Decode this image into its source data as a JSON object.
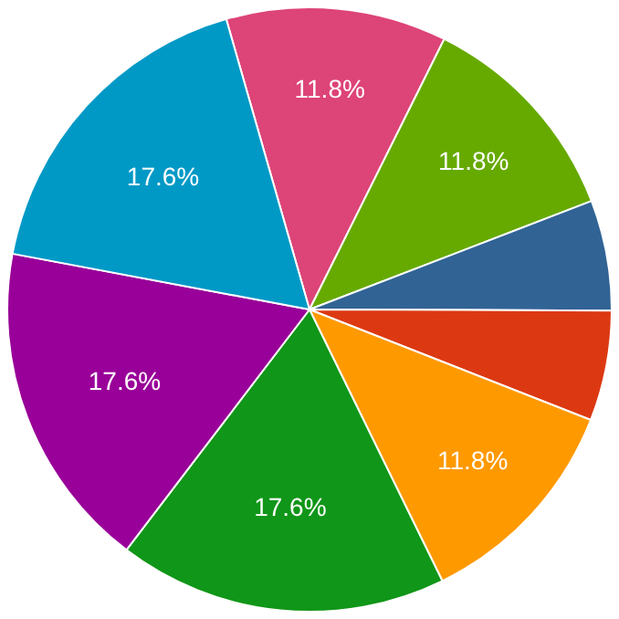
{
  "chart_data": {
    "type": "pie",
    "categories": [
      null,
      null,
      null,
      null,
      null,
      null,
      null,
      null
    ],
    "values": [
      11.8,
      11.8,
      5.9,
      5.9,
      11.8,
      17.6,
      17.6,
      17.6
    ],
    "value_labels": [
      "11.8%",
      "11.8%",
      null,
      null,
      "11.8%",
      "17.6%",
      "17.6%",
      "17.6%"
    ],
    "colors": [
      "#dd4477",
      "#66aa00",
      "#316395",
      "#dc3912",
      "#ff9900",
      "#109618",
      "#990099",
      "#0099c6"
    ],
    "legend": false
  }
}
